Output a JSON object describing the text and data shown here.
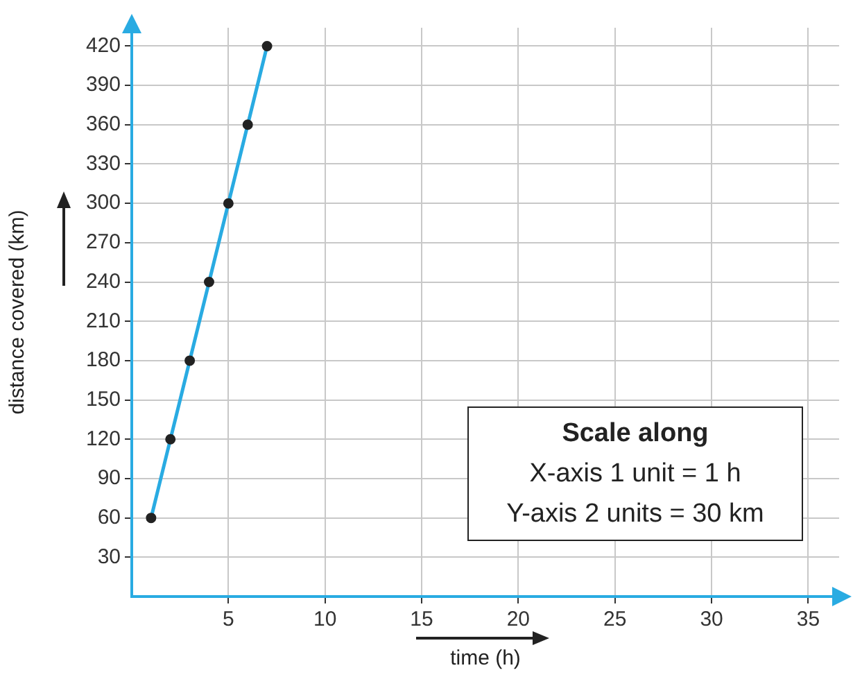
{
  "chart_data": {
    "type": "line",
    "xlabel": "time (h)",
    "ylabel": "distance covered (km)",
    "x": [
      1,
      2,
      3,
      4,
      5,
      6,
      7
    ],
    "series": [
      {
        "color": "#29abe2",
        "values": [
          60,
          120,
          180,
          240,
          300,
          360,
          420
        ]
      }
    ],
    "xlim": [
      0,
      36.6
    ],
    "xticks": [
      5,
      10,
      15,
      20,
      25,
      30,
      35
    ],
    "ylim": [
      0,
      434
    ],
    "yticks": [
      30,
      60,
      90,
      120,
      150,
      180,
      210,
      240,
      270,
      300,
      330,
      360,
      390,
      420
    ],
    "grid": true,
    "legend": false,
    "marker": "circle",
    "line_style": "solid",
    "annotations": [
      "Scale along",
      "X-axis 1 unit = 1 h",
      "Y-axis 2 units = 30 km"
    ]
  }
}
